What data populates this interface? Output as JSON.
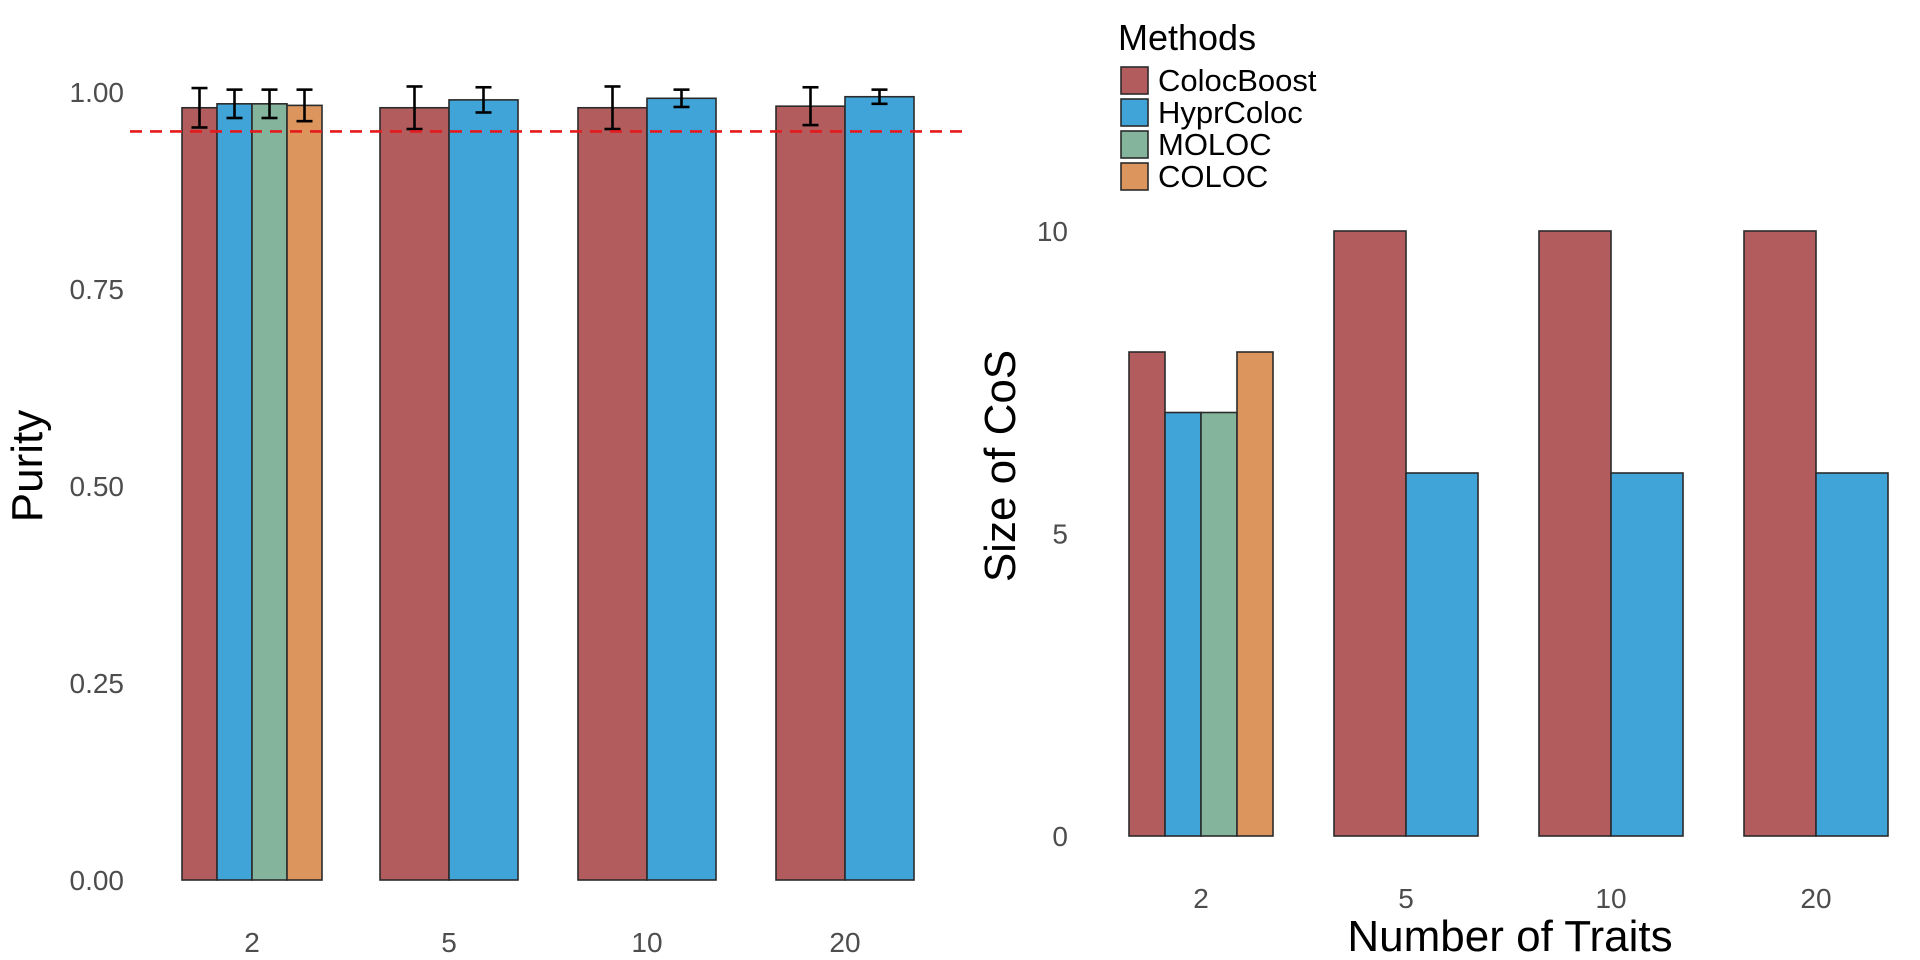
{
  "legend": {
    "title": "Methods",
    "entries": [
      "ColocBoost",
      "HyprColoc",
      "MOLOC",
      "COLOC"
    ]
  },
  "colors": {
    "ColocBoost": "#b35c5e",
    "HyprColoc": "#40a4d8",
    "MOLOC": "#84b59c",
    "COLOC": "#dc965d",
    "reference_line": "#e41a1c",
    "bar_outline": "#2b2b2b"
  },
  "chart_data": [
    {
      "type": "bar",
      "title": "",
      "xlabel": "",
      "ylabel": "Purity",
      "ylim": [
        0,
        1
      ],
      "yticks": [
        0,
        0.25,
        0.5,
        0.75,
        1
      ],
      "ytick_labels": [
        "0.00",
        "0.25",
        "0.50",
        "0.75",
        "1.00"
      ],
      "categories": [
        "2",
        "5",
        "10",
        "20"
      ],
      "reference_line": {
        "y": 0.95,
        "style": "dashed"
      },
      "series": [
        {
          "name": "ColocBoost",
          "values": [
            0.98,
            0.98,
            0.98,
            0.982
          ],
          "err": [
            0.025,
            0.027,
            0.027,
            0.024
          ]
        },
        {
          "name": "HyprColoc",
          "values": [
            0.985,
            0.99,
            0.992,
            0.994
          ],
          "err": [
            0.018,
            0.016,
            0.011,
            0.009
          ]
        },
        {
          "name": "MOLOC",
          "values": [
            0.985,
            null,
            null,
            null
          ],
          "err": [
            0.018,
            null,
            null,
            null
          ]
        },
        {
          "name": "COLOC",
          "values": [
            0.983,
            null,
            null,
            null
          ],
          "err": [
            0.02,
            null,
            null,
            null
          ]
        }
      ],
      "grid": false
    },
    {
      "type": "bar",
      "title": "",
      "xlabel": "Number of Traits",
      "ylabel": "Size of CoS",
      "ylim": [
        0,
        10
      ],
      "yticks": [
        0,
        5,
        10
      ],
      "ytick_labels": [
        "0",
        "5",
        "10"
      ],
      "categories": [
        "2",
        "5",
        "10",
        "20"
      ],
      "series": [
        {
          "name": "ColocBoost",
          "values": [
            8,
            10,
            10,
            10
          ]
        },
        {
          "name": "HyprColoc",
          "values": [
            7,
            6,
            6,
            6
          ]
        },
        {
          "name": "MOLOC",
          "values": [
            7,
            null,
            null,
            null
          ]
        },
        {
          "name": "COLOC",
          "values": [
            8,
            null,
            null,
            null
          ]
        }
      ],
      "grid": false,
      "legend_position": "top"
    }
  ]
}
